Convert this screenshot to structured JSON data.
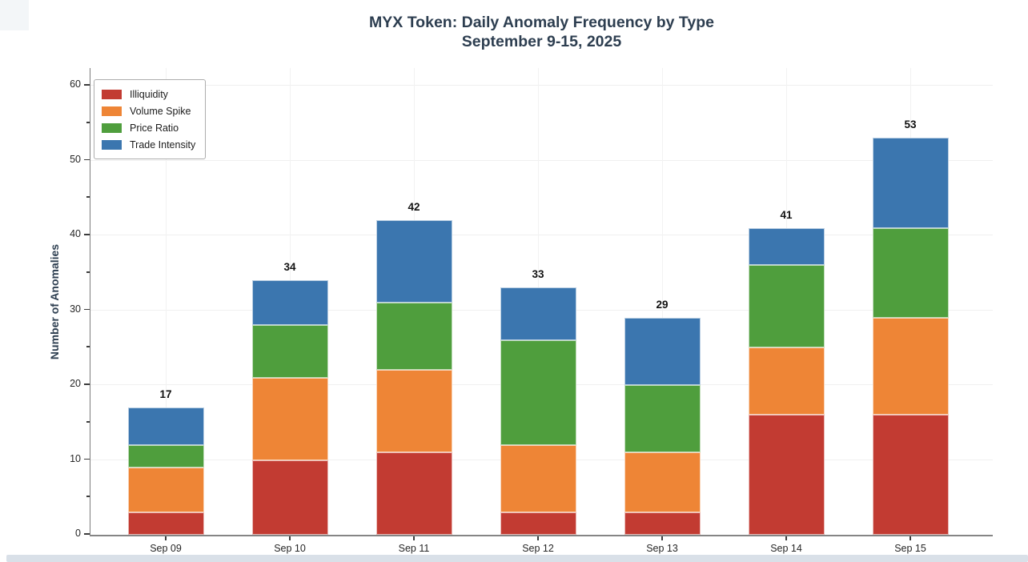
{
  "chart_data": {
    "type": "bar",
    "stacked": true,
    "title": "MYX Token: Daily Anomaly Frequency by Type",
    "subtitle": "September 9-15, 2025",
    "xlabel": "",
    "ylabel": "Number of Anomalies",
    "categories": [
      "Sep 09",
      "Sep 10",
      "Sep 11",
      "Sep 12",
      "Sep 13",
      "Sep 14",
      "Sep 15"
    ],
    "series": [
      {
        "name": "Illiquidity",
        "color": "#c23b32",
        "values": [
          3,
          10,
          11,
          3,
          3,
          16,
          16
        ]
      },
      {
        "name": "Volume Spike",
        "color": "#ee8536",
        "values": [
          6,
          11,
          11,
          9,
          8,
          9,
          13
        ]
      },
      {
        "name": "Price Ratio",
        "color": "#4f9e3d",
        "values": [
          3,
          7,
          9,
          14,
          9,
          11,
          12
        ]
      },
      {
        "name": "Trade Intensity",
        "color": "#3b76af",
        "values": [
          5,
          6,
          11,
          7,
          9,
          5,
          12
        ]
      }
    ],
    "totals": [
      17,
      34,
      42,
      33,
      29,
      41,
      53
    ],
    "ylim": [
      0,
      60
    ],
    "yticks": [
      0,
      10,
      20,
      30,
      40,
      50,
      60
    ],
    "yticks_minor": [
      5,
      15,
      25,
      35,
      45,
      55
    ],
    "grid": true,
    "legend_position": "upper left",
    "title_color": "#2d3e50"
  }
}
